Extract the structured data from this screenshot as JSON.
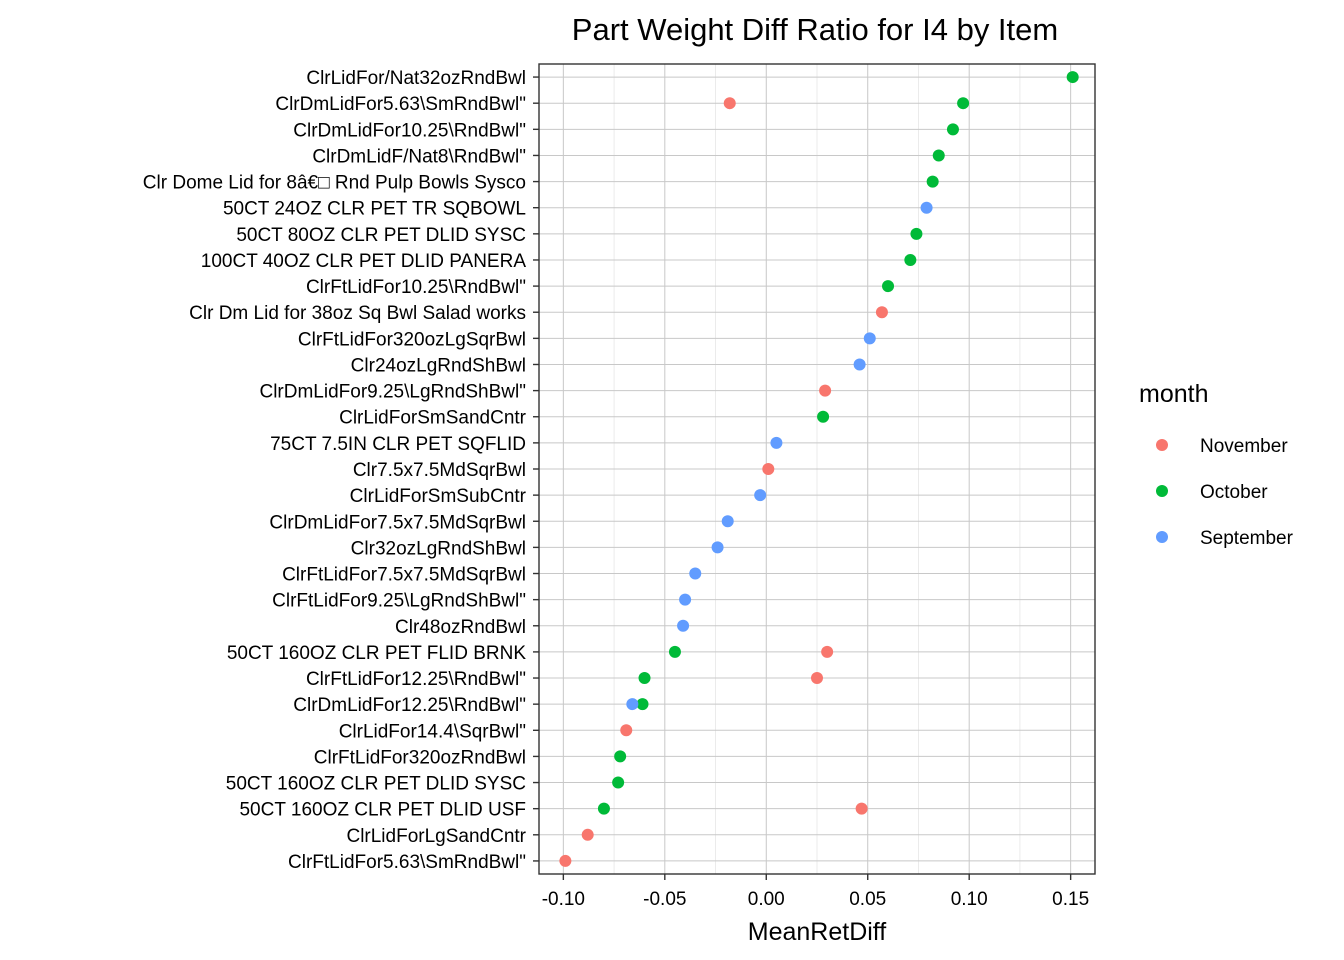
{
  "chart_data": {
    "type": "scatter",
    "title": "Part Weight Diff Ratio for I4 by Item",
    "xlabel": "MeanRetDiff",
    "ylabel": "",
    "xlim": [
      -0.112,
      0.162
    ],
    "xticks": [
      -0.1,
      -0.05,
      0.0,
      0.05,
      0.1,
      0.15
    ],
    "xtick_labels": [
      "-0.10",
      "-0.05",
      "0.00",
      "0.05",
      "0.10",
      "0.15"
    ],
    "grid": true,
    "legend": {
      "title": "month",
      "position": "right"
    },
    "categories": [
      "ClrLidFor/Nat32ozRndBwl",
      "ClrDmLidFor5.63\\SmRndBwl\"",
      "ClrDmLidFor10.25\\RndBwl\"",
      "ClrDmLidF/Nat8\\RndBwl\"",
      "Clr Dome Lid for 8â€□ Rnd Pulp Bowls Sysco",
      "50CT 24OZ CLR PET TR SQBOWL",
      "50CT 80OZ CLR PET DLID SYSC",
      "100CT 40OZ CLR PET DLID PANERA",
      "ClrFtLidFor10.25\\RndBwl\"",
      "Clr Dm Lid for 38oz Sq Bwl Salad works",
      "ClrFtLidFor320ozLgSqrBwl",
      "Clr24ozLgRndShBwl",
      "ClrDmLidFor9.25\\LgRndShBwl\"",
      "ClrLidForSmSandCntr",
      "75CT 7.5IN CLR PET SQFLID",
      "Clr7.5x7.5MdSqrBwl",
      "ClrLidForSmSubCntr",
      "ClrDmLidFor7.5x7.5MdSqrBwl",
      "Clr32ozLgRndShBwl",
      "ClrFtLidFor7.5x7.5MdSqrBwl",
      "ClrFtLidFor9.25\\LgRndShBwl\"",
      "Clr48ozRndBwl",
      "50CT 160OZ CLR PET FLID BRNK",
      "ClrFtLidFor12.25\\RndBwl\"",
      "ClrDmLidFor12.25\\RndBwl\"",
      "ClrLidFor14.4\\SqrBwl\"",
      "ClrFtLidFor320ozRndBwl",
      "50CT 160OZ CLR PET DLID SYSC",
      "50CT 160OZ CLR PET DLID USF",
      "ClrLidForLgSandCntr",
      "ClrFtLidFor5.63\\SmRndBwl\""
    ],
    "series": [
      {
        "name": "November",
        "color": "#F8766D",
        "points": [
          {
            "item": 1,
            "x": -0.018
          },
          {
            "item": 9,
            "x": 0.057
          },
          {
            "item": 12,
            "x": 0.029
          },
          {
            "item": 15,
            "x": 0.001
          },
          {
            "item": 22,
            "x": 0.03
          },
          {
            "item": 23,
            "x": 0.025
          },
          {
            "item": 25,
            "x": -0.069
          },
          {
            "item": 28,
            "x": 0.047
          },
          {
            "item": 29,
            "x": -0.088
          },
          {
            "item": 30,
            "x": -0.099
          }
        ]
      },
      {
        "name": "October",
        "color": "#00BA38",
        "points": [
          {
            "item": 0,
            "x": 0.151
          },
          {
            "item": 1,
            "x": 0.097
          },
          {
            "item": 2,
            "x": 0.092
          },
          {
            "item": 3,
            "x": 0.085
          },
          {
            "item": 4,
            "x": 0.082
          },
          {
            "item": 6,
            "x": 0.074
          },
          {
            "item": 7,
            "x": 0.071
          },
          {
            "item": 8,
            "x": 0.06
          },
          {
            "item": 13,
            "x": 0.028
          },
          {
            "item": 22,
            "x": -0.045
          },
          {
            "item": 23,
            "x": -0.06
          },
          {
            "item": 24,
            "x": -0.061
          },
          {
            "item": 26,
            "x": -0.072
          },
          {
            "item": 27,
            "x": -0.073
          },
          {
            "item": 28,
            "x": -0.08
          }
        ]
      },
      {
        "name": "September",
        "color": "#619CFF",
        "points": [
          {
            "item": 5,
            "x": 0.079
          },
          {
            "item": 10,
            "x": 0.051
          },
          {
            "item": 11,
            "x": 0.046
          },
          {
            "item": 14,
            "x": 0.005
          },
          {
            "item": 16,
            "x": -0.003
          },
          {
            "item": 17,
            "x": -0.019
          },
          {
            "item": 18,
            "x": -0.024
          },
          {
            "item": 19,
            "x": -0.035
          },
          {
            "item": 20,
            "x": -0.04
          },
          {
            "item": 21,
            "x": -0.041
          },
          {
            "item": 24,
            "x": -0.066
          }
        ]
      }
    ]
  }
}
